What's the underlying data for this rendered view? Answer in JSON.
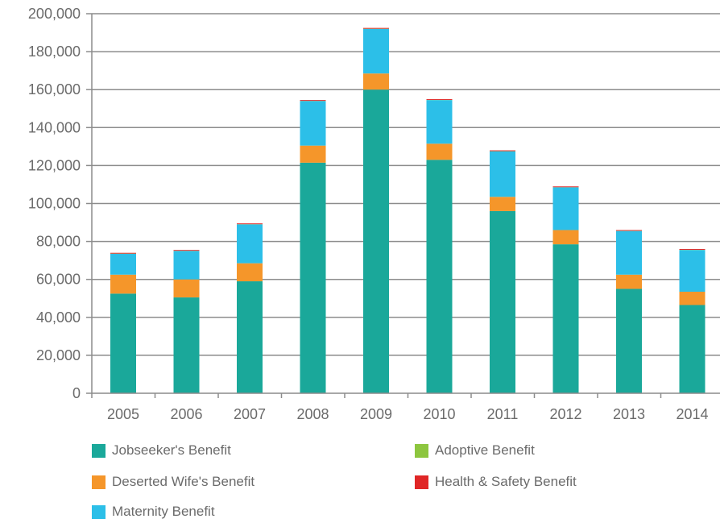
{
  "chart_data": {
    "type": "bar",
    "stacked": true,
    "categories": [
      "2005",
      "2006",
      "2007",
      "2008",
      "2009",
      "2010",
      "2011",
      "2012",
      "2013",
      "2014"
    ],
    "ylim": [
      0,
      200000
    ],
    "yticks": [
      0,
      20000,
      40000,
      60000,
      80000,
      100000,
      120000,
      140000,
      160000,
      180000,
      200000
    ],
    "ytick_labels": [
      "0",
      "20,000",
      "40,000",
      "60,000",
      "80,000",
      "100,000",
      "120,000",
      "140,000",
      "160,000",
      "180,000",
      "200,000"
    ],
    "grid": true,
    "legend_position": "bottom",
    "series": [
      {
        "name": "Jobseeker's Benefit",
        "color": "#1aa89a",
        "values": [
          52500,
          50500,
          59000,
          121500,
          160000,
          123000,
          96000,
          78500,
          55000,
          46500
        ]
      },
      {
        "name": "Deserted Wife's Benefit",
        "color": "#f5962a",
        "values": [
          10000,
          9500,
          9500,
          9000,
          8500,
          8500,
          7500,
          7500,
          7500,
          7000
        ]
      },
      {
        "name": "Maternity Benefit",
        "color": "#2cbfe8",
        "values": [
          11000,
          15000,
          20500,
          23500,
          23500,
          23000,
          24000,
          22500,
          23000,
          22000
        ]
      },
      {
        "name": "Adoptive Benefit",
        "color": "#8dc63f",
        "values": [
          100,
          100,
          100,
          100,
          100,
          100,
          100,
          100,
          100,
          100
        ]
      },
      {
        "name": "Health & Safety Benefit",
        "color": "#e02626",
        "values": [
          400,
          400,
          400,
          400,
          400,
          400,
          400,
          400,
          400,
          400
        ]
      }
    ]
  }
}
